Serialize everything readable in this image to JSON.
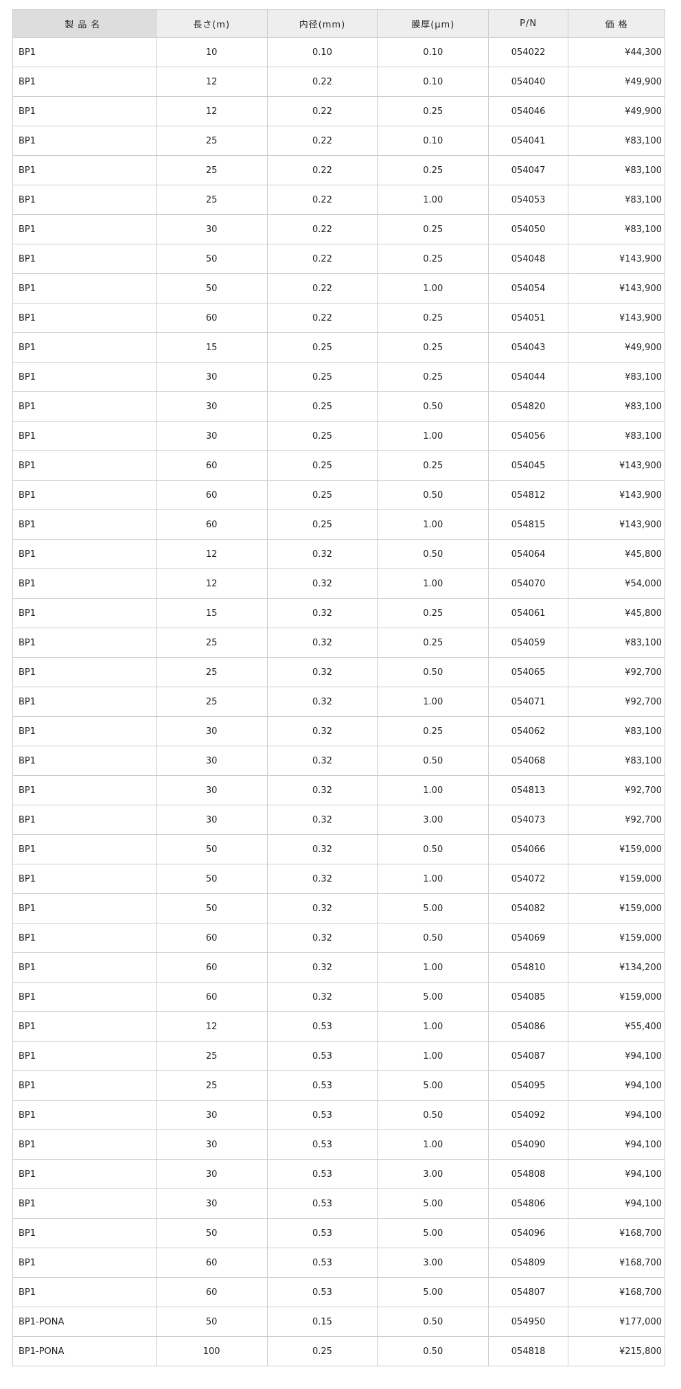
{
  "table": {
    "headers": [
      "製品名",
      "長さ(m)",
      "内径(mm)",
      "膜厚(μm)",
      "P/N",
      "価 格"
    ],
    "rows": [
      [
        "BP1",
        "10",
        "0.10",
        "0.10",
        "054022",
        "¥44,300"
      ],
      [
        "BP1",
        "12",
        "0.22",
        "0.10",
        "054040",
        "¥49,900"
      ],
      [
        "BP1",
        "12",
        "0.22",
        "0.25",
        "054046",
        "¥49,900"
      ],
      [
        "BP1",
        "25",
        "0.22",
        "0.10",
        "054041",
        "¥83,100"
      ],
      [
        "BP1",
        "25",
        "0.22",
        "0.25",
        "054047",
        "¥83,100"
      ],
      [
        "BP1",
        "25",
        "0.22",
        "1.00",
        "054053",
        "¥83,100"
      ],
      [
        "BP1",
        "30",
        "0.22",
        "0.25",
        "054050",
        "¥83,100"
      ],
      [
        "BP1",
        "50",
        "0.22",
        "0.25",
        "054048",
        "¥143,900"
      ],
      [
        "BP1",
        "50",
        "0.22",
        "1.00",
        "054054",
        "¥143,900"
      ],
      [
        "BP1",
        "60",
        "0.22",
        "0.25",
        "054051",
        "¥143,900"
      ],
      [
        "BP1",
        "15",
        "0.25",
        "0.25",
        "054043",
        "¥49,900"
      ],
      [
        "BP1",
        "30",
        "0.25",
        "0.25",
        "054044",
        "¥83,100"
      ],
      [
        "BP1",
        "30",
        "0.25",
        "0.50",
        "054820",
        "¥83,100"
      ],
      [
        "BP1",
        "30",
        "0.25",
        "1.00",
        "054056",
        "¥83,100"
      ],
      [
        "BP1",
        "60",
        "0.25",
        "0.25",
        "054045",
        "¥143,900"
      ],
      [
        "BP1",
        "60",
        "0.25",
        "0.50",
        "054812",
        "¥143,900"
      ],
      [
        "BP1",
        "60",
        "0.25",
        "1.00",
        "054815",
        "¥143,900"
      ],
      [
        "BP1",
        "12",
        "0.32",
        "0.50",
        "054064",
        "¥45,800"
      ],
      [
        "BP1",
        "12",
        "0.32",
        "1.00",
        "054070",
        "¥54,000"
      ],
      [
        "BP1",
        "15",
        "0.32",
        "0.25",
        "054061",
        "¥45,800"
      ],
      [
        "BP1",
        "25",
        "0.32",
        "0.25",
        "054059",
        "¥83,100"
      ],
      [
        "BP1",
        "25",
        "0.32",
        "0.50",
        "054065",
        "¥92,700"
      ],
      [
        "BP1",
        "25",
        "0.32",
        "1.00",
        "054071",
        "¥92,700"
      ],
      [
        "BP1",
        "30",
        "0.32",
        "0.25",
        "054062",
        "¥83,100"
      ],
      [
        "BP1",
        "30",
        "0.32",
        "0.50",
        "054068",
        "¥83,100"
      ],
      [
        "BP1",
        "30",
        "0.32",
        "1.00",
        "054813",
        "¥92,700"
      ],
      [
        "BP1",
        "30",
        "0.32",
        "3.00",
        "054073",
        "¥92,700"
      ],
      [
        "BP1",
        "50",
        "0.32",
        "0.50",
        "054066",
        "¥159,000"
      ],
      [
        "BP1",
        "50",
        "0.32",
        "1.00",
        "054072",
        "¥159,000"
      ],
      [
        "BP1",
        "50",
        "0.32",
        "5.00",
        "054082",
        "¥159,000"
      ],
      [
        "BP1",
        "60",
        "0.32",
        "0.50",
        "054069",
        "¥159,000"
      ],
      [
        "BP1",
        "60",
        "0.32",
        "1.00",
        "054810",
        "¥134,200"
      ],
      [
        "BP1",
        "60",
        "0.32",
        "5.00",
        "054085",
        "¥159,000"
      ],
      [
        "BP1",
        "12",
        "0.53",
        "1.00",
        "054086",
        "¥55,400"
      ],
      [
        "BP1",
        "25",
        "0.53",
        "1.00",
        "054087",
        "¥94,100"
      ],
      [
        "BP1",
        "25",
        "0.53",
        "5.00",
        "054095",
        "¥94,100"
      ],
      [
        "BP1",
        "30",
        "0.53",
        "0.50",
        "054092",
        "¥94,100"
      ],
      [
        "BP1",
        "30",
        "0.53",
        "1.00",
        "054090",
        "¥94,100"
      ],
      [
        "BP1",
        "30",
        "0.53",
        "3.00",
        "054808",
        "¥94,100"
      ],
      [
        "BP1",
        "30",
        "0.53",
        "5.00",
        "054806",
        "¥94,100"
      ],
      [
        "BP1",
        "50",
        "0.53",
        "5.00",
        "054096",
        "¥168,700"
      ],
      [
        "BP1",
        "60",
        "0.53",
        "3.00",
        "054809",
        "¥168,700"
      ],
      [
        "BP1",
        "60",
        "0.53",
        "5.00",
        "054807",
        "¥168,700"
      ],
      [
        "BP1-PONA",
        "50",
        "0.15",
        "0.50",
        "054950",
        "¥177,000"
      ],
      [
        "BP1-PONA",
        "100",
        "0.25",
        "0.50",
        "054818",
        "¥215,800"
      ]
    ]
  }
}
